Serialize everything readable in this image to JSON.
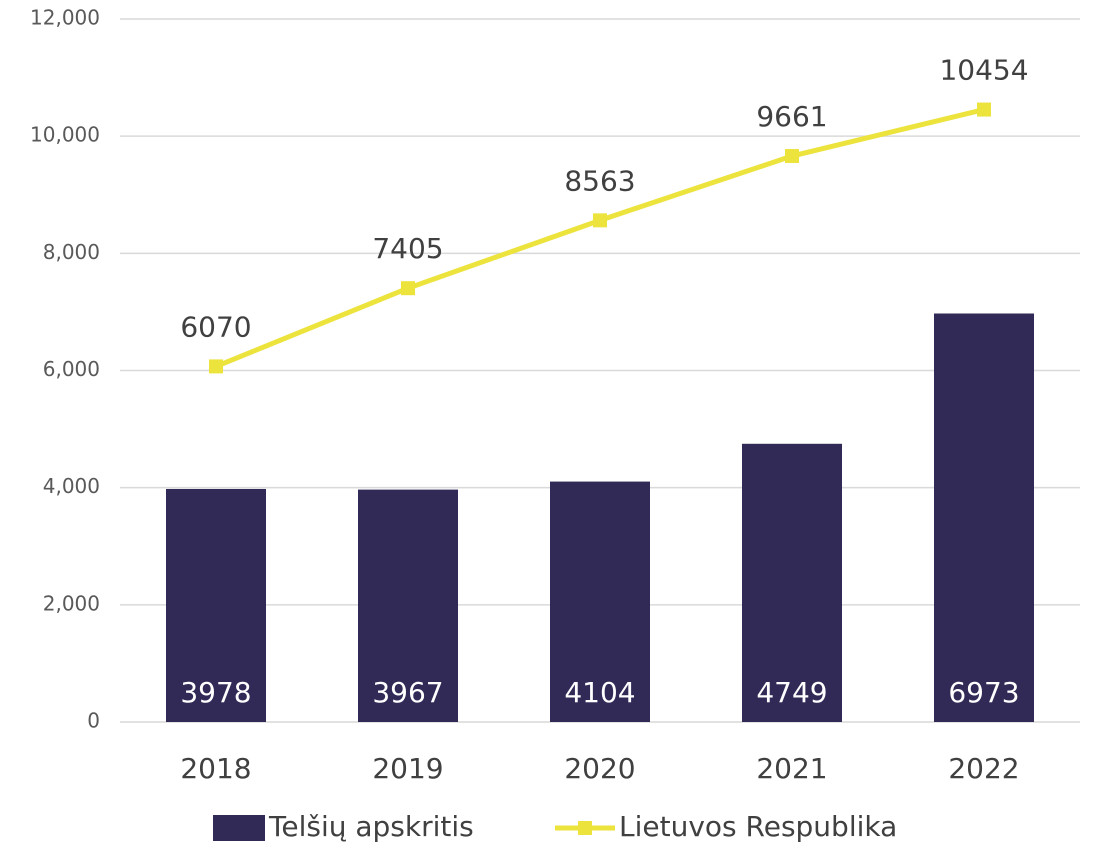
{
  "chart_data": {
    "type": "bar",
    "categories": [
      "2018",
      "2019",
      "2020",
      "2021",
      "2022"
    ],
    "series": [
      {
        "name": "Telšių apskritis",
        "type": "bar",
        "color": "#312a57",
        "values": [
          3978,
          3967,
          4104,
          4749,
          6973
        ]
      },
      {
        "name": "Lietuvos Respublika",
        "type": "line",
        "color": "#ece33d",
        "values": [
          6070,
          7405,
          8563,
          9661,
          10454
        ]
      }
    ],
    "ylim": [
      0,
      12000
    ],
    "yticks": [
      0,
      {
        "value": 2000,
        "label": "2,000"
      },
      {
        "value": 4000,
        "label": "4,000"
      },
      {
        "value": 6000,
        "label": "6,000"
      },
      {
        "value": 8000,
        "label": "8,000"
      },
      {
        "value": 10000,
        "label": "10,000"
      },
      {
        "value": 12000,
        "label": "12,000"
      }
    ],
    "grid": true,
    "legend": "bottom"
  }
}
